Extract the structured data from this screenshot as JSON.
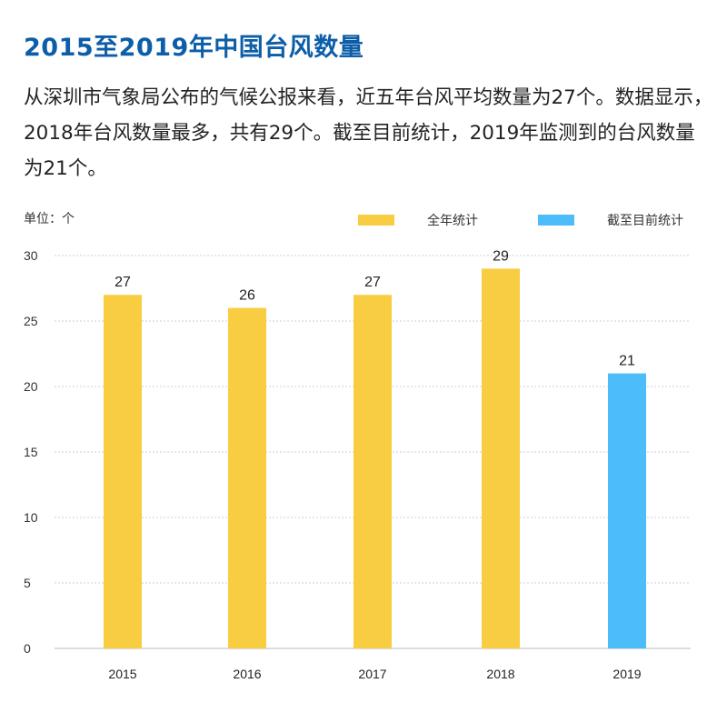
{
  "title": "2015至2019年中国台风数量",
  "description": "从深圳市气象局公布的气候公报来看，近五年台风平均数量为27个。数据显示，2018年台风数量最多，共有29个。截至目前统计，2019年监测到的台风数量为21个。",
  "unit_label": "单位：个",
  "colors": {
    "full_year": "#f9cd42",
    "to_date": "#4dbdf9",
    "title": "#0d5ea8",
    "grid": "#cccccc"
  },
  "chart_data": {
    "type": "bar",
    "categories": [
      "2015",
      "2016",
      "2017",
      "2018",
      "2019"
    ],
    "values": [
      27,
      26,
      27,
      29,
      21
    ],
    "series_of_bar": [
      "全年统计",
      "全年统计",
      "全年统计",
      "全年统计",
      "截至目前统计"
    ],
    "legend": [
      {
        "name": "全年统计",
        "color": "#f9cd42"
      },
      {
        "name": "截至目前统计",
        "color": "#4dbdf9"
      }
    ],
    "legend_placement": "top-right",
    "ylim": [
      0,
      30
    ],
    "yticks": [
      0,
      5,
      10,
      15,
      20,
      25,
      30
    ],
    "grid": true,
    "data_labels": true
  }
}
